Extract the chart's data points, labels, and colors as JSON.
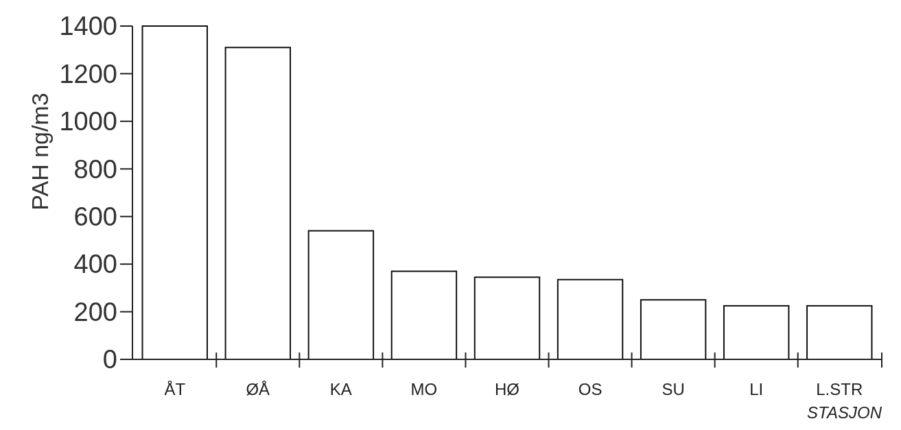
{
  "chart_data": {
    "type": "bar",
    "categories": [
      "ÅT",
      "ØÅ",
      "KA",
      "MO",
      "HØ",
      "OS",
      "SU",
      "LI",
      "L.STR"
    ],
    "values": [
      1400,
      1310,
      540,
      370,
      345,
      335,
      250,
      225,
      225
    ],
    "color": "#ffffff",
    "ylim": [
      0,
      1400
    ],
    "yticks": [
      0,
      200,
      400,
      600,
      800,
      1000,
      1200,
      1400
    ],
    "xlabel": "STASJON",
    "ylabel": "PAH ng/m3",
    "grid": false
  }
}
